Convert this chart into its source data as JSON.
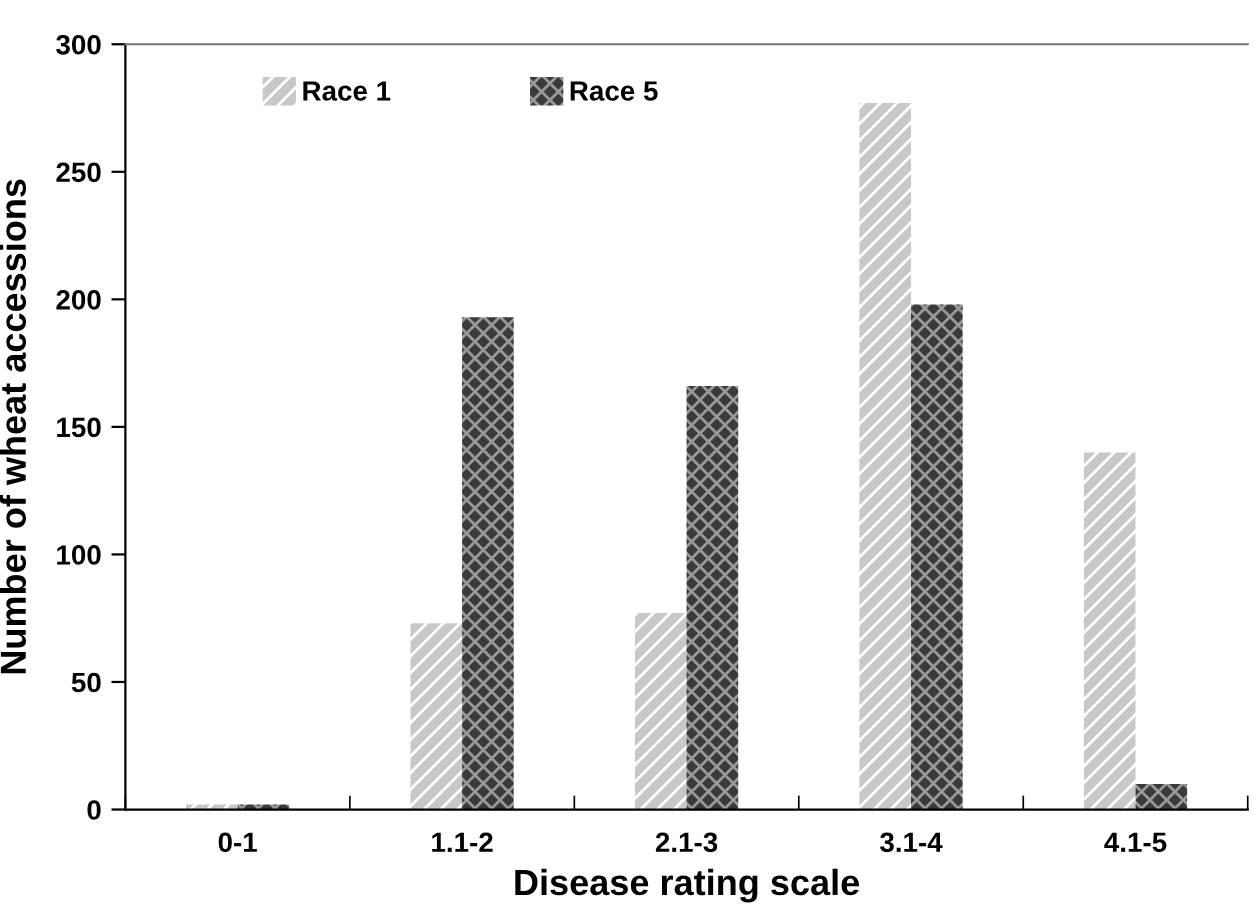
{
  "chart_data": {
    "type": "bar",
    "xlabel": "Disease rating scale",
    "ylabel": "Number of wheat accessions",
    "categories": [
      "0-1",
      "1.1-2",
      "2.1-3",
      "3.1-4",
      "4.1-5"
    ],
    "series": [
      {
        "name": "Race 1",
        "color": "#c8c8c8",
        "values": [
          2,
          73,
          77,
          277,
          140
        ]
      },
      {
        "name": "Race 5",
        "color": "#3a3a3a",
        "values": [
          2,
          193,
          166,
          198,
          10
        ]
      }
    ],
    "ylim": [
      0,
      300
    ],
    "yticks": [
      0,
      50,
      100,
      150,
      200,
      250,
      300
    ],
    "grid": false,
    "legend": "top left"
  }
}
